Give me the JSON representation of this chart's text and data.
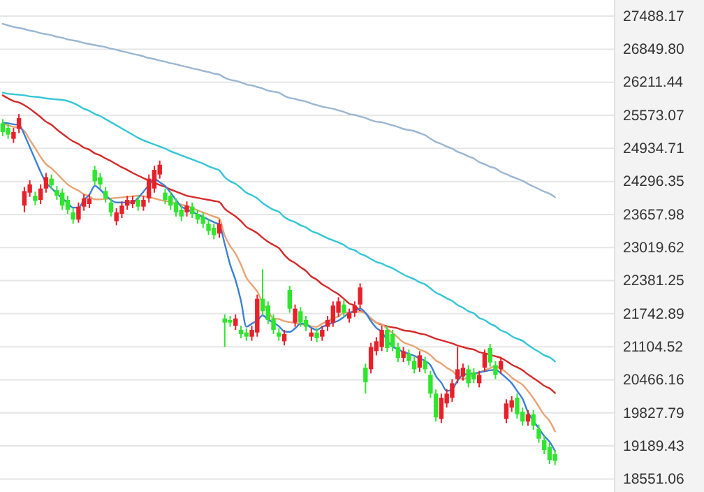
{
  "chart_data": {
    "type": "candlestick",
    "categories": [
      null,
      null,
      null,
      null,
      null,
      null,
      null,
      null,
      null,
      null,
      null,
      null,
      null,
      null,
      null,
      null,
      null,
      null,
      null,
      null,
      null,
      null,
      null,
      null,
      null,
      null,
      null,
      null,
      null,
      null,
      null,
      null,
      null,
      null,
      null,
      null,
      null,
      null,
      null,
      null,
      null,
      null,
      null,
      null,
      null,
      null,
      null,
      null,
      null,
      null,
      null,
      null,
      null,
      null,
      null,
      null,
      null,
      null,
      null,
      null,
      null,
      null,
      null,
      null,
      null,
      null,
      null,
      null,
      null,
      null,
      null,
      null,
      null,
      null,
      null,
      null,
      null,
      null,
      null,
      null,
      null,
      null,
      null,
      null,
      null,
      null,
      null,
      null,
      null,
      null,
      null,
      null,
      null,
      null,
      null,
      null,
      null,
      null,
      null,
      null,
      null,
      null,
      null
    ],
    "ohlc": [
      [
        25420,
        25500,
        25170,
        25250
      ],
      [
        25330,
        25410,
        25120,
        25200
      ],
      [
        25120,
        25330,
        25040,
        25250
      ],
      [
        25310,
        25600,
        25230,
        25520
      ],
      [
        23830,
        24190,
        23700,
        24110
      ],
      [
        24080,
        24320,
        24000,
        24240
      ],
      [
        24020,
        24100,
        23840,
        23920
      ],
      [
        23940,
        24240,
        23860,
        24160
      ],
      [
        24160,
        24460,
        24080,
        24380
      ],
      [
        24350,
        24430,
        24140,
        24220
      ],
      [
        24130,
        24210,
        23940,
        24020
      ],
      [
        24080,
        24160,
        23750,
        23830
      ],
      [
        23940,
        24020,
        23670,
        23750
      ],
      [
        23700,
        23780,
        23480,
        23560
      ],
      [
        23560,
        23890,
        23500,
        23810
      ],
      [
        23810,
        24050,
        23730,
        23970
      ],
      [
        23860,
        24050,
        23780,
        23970
      ],
      [
        24520,
        24600,
        24220,
        24300
      ],
      [
        24380,
        24460,
        24160,
        24240
      ],
      [
        24110,
        24190,
        23890,
        23970
      ],
      [
        23890,
        23970,
        23620,
        23700
      ],
      [
        23530,
        23780,
        23450,
        23700
      ],
      [
        23670,
        23910,
        23590,
        23830
      ],
      [
        23830,
        24020,
        23750,
        23940
      ],
      [
        23860,
        24020,
        23780,
        23940
      ],
      [
        23940,
        24020,
        23730,
        23810
      ],
      [
        23810,
        24020,
        23730,
        23940
      ],
      [
        23970,
        24430,
        23890,
        24350
      ],
      [
        24160,
        24600,
        24080,
        24520
      ],
      [
        24430,
        24700,
        24350,
        24620
      ],
      [
        24080,
        24160,
        23860,
        23940
      ],
      [
        24020,
        24100,
        23750,
        23830
      ],
      [
        23890,
        23970,
        23620,
        23700
      ],
      [
        23750,
        23830,
        23530,
        23620
      ],
      [
        23700,
        23910,
        23620,
        23830
      ],
      [
        23810,
        23890,
        23590,
        23670
      ],
      [
        23670,
        23750,
        23480,
        23560
      ],
      [
        23620,
        23700,
        23400,
        23480
      ],
      [
        23480,
        23560,
        23260,
        23340
      ],
      [
        23400,
        23480,
        23180,
        23260
      ],
      [
        23290,
        23560,
        23210,
        23480
      ],
      [
        21650,
        21730,
        21100,
        21570
      ],
      [
        21620,
        21700,
        21490,
        21570
      ],
      [
        21510,
        21730,
        21430,
        21650
      ],
      [
        21430,
        21510,
        21270,
        21350
      ],
      [
        21380,
        21460,
        21220,
        21300
      ],
      [
        21300,
        21510,
        21220,
        21430
      ],
      [
        21380,
        22110,
        21300,
        22030
      ],
      [
        22030,
        22600,
        21710,
        21790
      ],
      [
        21900,
        21980,
        21540,
        21620
      ],
      [
        21650,
        21730,
        21350,
        21430
      ],
      [
        21380,
        21460,
        21220,
        21300
      ],
      [
        21210,
        21430,
        21130,
        21350
      ],
      [
        22200,
        22280,
        21760,
        21840
      ],
      [
        21570,
        21920,
        21490,
        21840
      ],
      [
        21790,
        21870,
        21490,
        21570
      ],
      [
        21620,
        21700,
        21410,
        21490
      ],
      [
        21300,
        21460,
        21220,
        21380
      ],
      [
        21380,
        21460,
        21190,
        21270
      ],
      [
        21300,
        21510,
        21220,
        21430
      ],
      [
        21490,
        21700,
        21410,
        21620
      ],
      [
        21570,
        21980,
        21490,
        21900
      ],
      [
        21760,
        22060,
        21680,
        21980
      ],
      [
        21920,
        22000,
        21680,
        21760
      ],
      [
        21650,
        21840,
        21570,
        21760
      ],
      [
        21760,
        21980,
        21680,
        21900
      ],
      [
        21920,
        22330,
        21840,
        22250
      ],
      [
        20700,
        20780,
        20200,
        20420
      ],
      [
        20670,
        21180,
        20590,
        21100
      ],
      [
        21020,
        21290,
        20940,
        21210
      ],
      [
        21100,
        21510,
        21020,
        21430
      ],
      [
        21430,
        21510,
        21000,
        21080
      ],
      [
        21350,
        21430,
        21020,
        21100
      ],
      [
        21100,
        21180,
        20810,
        20890
      ],
      [
        20890,
        21100,
        20810,
        21020
      ],
      [
        20970,
        21050,
        20750,
        20830
      ],
      [
        20830,
        20910,
        20590,
        20670
      ],
      [
        20700,
        21020,
        20620,
        20940
      ],
      [
        20830,
        20910,
        20590,
        20670
      ],
      [
        20560,
        20640,
        20120,
        20200
      ],
      [
        20200,
        20280,
        19660,
        19740
      ],
      [
        19710,
        20200,
        19630,
        20120
      ],
      [
        20010,
        20290,
        19930,
        20200
      ],
      [
        20120,
        20480,
        20040,
        20400
      ],
      [
        20480,
        21100,
        20400,
        20670
      ],
      [
        20530,
        20780,
        20450,
        20700
      ],
      [
        20670,
        20750,
        20320,
        20400
      ],
      [
        20610,
        20690,
        20400,
        20480
      ],
      [
        20400,
        20640,
        20320,
        20560
      ],
      [
        20700,
        21050,
        20620,
        20970
      ],
      [
        21080,
        21160,
        20720,
        20800
      ],
      [
        20750,
        20830,
        20480,
        20560
      ],
      [
        20670,
        20910,
        20590,
        20830
      ],
      [
        19710,
        20090,
        19630,
        20010
      ],
      [
        19930,
        20150,
        19850,
        20070
      ],
      [
        20120,
        20200,
        19720,
        19800
      ],
      [
        19850,
        19930,
        19580,
        19660
      ],
      [
        19660,
        19880,
        19580,
        19800
      ],
      [
        19800,
        19880,
        19500,
        19580
      ],
      [
        19520,
        19600,
        19250,
        19330
      ],
      [
        19300,
        19380,
        19030,
        19110
      ],
      [
        19170,
        19250,
        18840,
        18920
      ],
      [
        19030,
        19110,
        18820,
        18900
      ]
    ],
    "colors": [
      "#2ee62e",
      "#2ee62e",
      "#e8202a",
      "#e8202a",
      "#e8202a",
      "#e8202a",
      "#2ee62e",
      "#e8202a",
      "#e8202a",
      "#2ee62e",
      "#2ee62e",
      "#2ee62e",
      "#2ee62e",
      "#2ee62e",
      "#e8202a",
      "#e8202a",
      "#e8202a",
      "#2ee62e",
      "#2ee62e",
      "#2ee62e",
      "#2ee62e",
      "#e8202a",
      "#e8202a",
      "#e8202a",
      "#e8202a",
      "#2ee62e",
      "#e8202a",
      "#e8202a",
      "#e8202a",
      "#e8202a",
      "#2ee62e",
      "#2ee62e",
      "#2ee62e",
      "#2ee62e",
      "#e8202a",
      "#2ee62e",
      "#2ee62e",
      "#2ee62e",
      "#2ee62e",
      "#2ee62e",
      "#e8202a",
      "#2ee62e",
      "#2ee62e",
      "#e8202a",
      "#2ee62e",
      "#2ee62e",
      "#e8202a",
      "#e8202a",
      "#2ee62e",
      "#2ee62e",
      "#2ee62e",
      "#2ee62e",
      "#e8202a",
      "#2ee62e",
      "#e8202a",
      "#2ee62e",
      "#2ee62e",
      "#e8202a",
      "#2ee62e",
      "#e8202a",
      "#e8202a",
      "#e8202a",
      "#e8202a",
      "#2ee62e",
      "#e8202a",
      "#e8202a",
      "#e8202a",
      "#2ee62e",
      "#e8202a",
      "#e8202a",
      "#e8202a",
      "#2ee62e",
      "#2ee62e",
      "#2ee62e",
      "#e8202a",
      "#2ee62e",
      "#2ee62e",
      "#e8202a",
      "#2ee62e",
      "#2ee62e",
      "#2ee62e",
      "#e8202a",
      "#e8202a",
      "#e8202a",
      "#e8202a",
      "#e8202a",
      "#2ee62e",
      "#2ee62e",
      "#e8202a",
      "#e8202a",
      "#2ee62e",
      "#2ee62e",
      "#e8202a",
      "#e8202a",
      "#e8202a",
      "#2ee62e",
      "#2ee62e",
      "#e8202a",
      "#2ee62e",
      "#2ee62e",
      "#2ee62e",
      "#2ee62e",
      "#2ee62e"
    ],
    "series": [
      {
        "type": "line",
        "color": "#9ab6d2",
        "values": [
          27340,
          27310,
          27280,
          27260,
          27240,
          27210,
          27190,
          27160,
          27140,
          27120,
          27090,
          27070,
          27040,
          27020,
          27000,
          26970,
          26950,
          26930,
          26910,
          26890,
          26860,
          26840,
          26810,
          26790,
          26760,
          26740,
          26710,
          26680,
          26660,
          26630,
          26610,
          26580,
          26560,
          26530,
          26510,
          26480,
          26460,
          26430,
          26410,
          26380,
          26360,
          26300,
          26260,
          26240,
          26210,
          26170,
          26150,
          26120,
          26090,
          26050,
          26030,
          26010,
          25950,
          25910,
          25890,
          25860,
          25840,
          25800,
          25770,
          25740,
          25720,
          25700,
          25670,
          25640,
          25600,
          25580,
          25550,
          25520,
          25480,
          25450,
          25440,
          25410,
          25380,
          25350,
          25310,
          25290,
          25270,
          25230,
          25190,
          25120,
          25060,
          25020,
          24970,
          24930,
          24870,
          24830,
          24780,
          24740,
          24670,
          24630,
          24580,
          24550,
          24480,
          24440,
          24390,
          24350,
          24310,
          24250,
          24200,
          24150,
          24100,
          24060,
          23990
        ]
      },
      {
        "type": "line",
        "color": "#33c6d8",
        "values": [
          26010,
          25990,
          25980,
          25970,
          25960,
          25940,
          25930,
          25920,
          25900,
          25890,
          25880,
          25870,
          25850,
          25810,
          25760,
          25700,
          25660,
          25600,
          25560,
          25500,
          25440,
          25380,
          25320,
          25260,
          25200,
          25140,
          25090,
          25050,
          25010,
          24970,
          24930,
          24880,
          24840,
          24800,
          24760,
          24720,
          24680,
          24640,
          24590,
          24550,
          24510,
          24380,
          24300,
          24250,
          24170,
          24080,
          24030,
          23970,
          23880,
          23810,
          23750,
          23710,
          23610,
          23550,
          23510,
          23450,
          23410,
          23340,
          23300,
          23250,
          23200,
          23160,
          23120,
          23070,
          23000,
          22970,
          22900,
          22860,
          22800,
          22740,
          22710,
          22660,
          22620,
          22560,
          22500,
          22450,
          22410,
          22350,
          22310,
          22230,
          22150,
          22100,
          22040,
          21990,
          21910,
          21860,
          21790,
          21750,
          21660,
          21620,
          21550,
          21500,
          21420,
          21380,
          21310,
          21260,
          21220,
          21140,
          21070,
          21010,
          20940,
          20900,
          20820
        ]
      },
      {
        "type": "line",
        "color": "#d62a2a",
        "values": [
          25960,
          25900,
          25850,
          25820,
          25770,
          25700,
          25620,
          25540,
          25450,
          25390,
          25300,
          25220,
          25140,
          25070,
          25020,
          24950,
          24910,
          24840,
          24800,
          24740,
          24690,
          24630,
          24570,
          24520,
          24460,
          24410,
          24360,
          24310,
          24270,
          24230,
          24190,
          24140,
          24100,
          24060,
          24020,
          24000,
          23980,
          23960,
          23940,
          23920,
          23900,
          23770,
          23690,
          23620,
          23530,
          23420,
          23360,
          23300,
          23210,
          23130,
          23070,
          23010,
          22880,
          22780,
          22720,
          22640,
          22570,
          22460,
          22400,
          22310,
          22250,
          22180,
          22120,
          22030,
          21940,
          21900,
          21800,
          21750,
          21650,
          21570,
          21530,
          21500,
          21480,
          21460,
          21420,
          21410,
          21390,
          21360,
          21340,
          21300,
          21260,
          21230,
          21200,
          21170,
          21130,
          21100,
          21070,
          21050,
          21000,
          20980,
          20950,
          20920,
          20890,
          20830,
          20760,
          20710,
          20650,
          20570,
          20500,
          20430,
          20350,
          20300,
          20210
        ]
      },
      {
        "type": "line",
        "color": "#e9a374",
        "values": [
          25420,
          25380,
          25350,
          25330,
          25270,
          25100,
          24940,
          24770,
          24630,
          24550,
          24450,
          24340,
          24240,
          24170,
          24120,
          24050,
          24010,
          23950,
          23950,
          23960,
          23970,
          23980,
          23990,
          24000,
          24010,
          24020,
          24010,
          23990,
          23970,
          23940,
          23920,
          23900,
          23870,
          23850,
          23820,
          23780,
          23740,
          23700,
          23660,
          23620,
          23580,
          23250,
          23050,
          22900,
          22690,
          22440,
          22300,
          22170,
          21950,
          21800,
          21650,
          21640,
          21600,
          21580,
          21560,
          21540,
          21530,
          21500,
          21490,
          21550,
          21600,
          21650,
          21690,
          21760,
          21770,
          21770,
          21780,
          21750,
          21650,
          21570,
          21540,
          21450,
          21370,
          21280,
          21190,
          21150,
          21110,
          21050,
          21010,
          20940,
          20840,
          20780,
          20700,
          20640,
          20540,
          20480,
          20520,
          20560,
          20610,
          20650,
          20690,
          20730,
          20680,
          20610,
          20510,
          20440,
          20370,
          20250,
          20110,
          19950,
          19790,
          19670,
          19470
        ]
      },
      {
        "type": "line",
        "color": "#3a80d6",
        "values": [
          25430,
          25420,
          25400,
          25390,
          25200,
          24960,
          24720,
          24480,
          24270,
          24170,
          24060,
          23970,
          23880,
          23790,
          23790,
          23940,
          24040,
          24210,
          24140,
          24030,
          23940,
          23890,
          23890,
          23890,
          23890,
          23980,
          24100,
          24230,
          24350,
          24280,
          24210,
          24080,
          23940,
          23810,
          23760,
          23710,
          23660,
          23610,
          23560,
          23510,
          23460,
          23090,
          22690,
          22390,
          21990,
          21490,
          21550,
          21610,
          21710,
          21630,
          21570,
          21500,
          21400,
          21390,
          21460,
          21550,
          21540,
          21470,
          21430,
          21490,
          21530,
          21570,
          21610,
          21680,
          21760,
          21790,
          21840,
          21760,
          21600,
          21470,
          21390,
          21230,
          21110,
          21060,
          21000,
          20970,
          20930,
          20880,
          20830,
          20750,
          20540,
          20410,
          20250,
          20280,
          20450,
          20560,
          20580,
          20590,
          20610,
          20630,
          20650,
          20660,
          20590,
          20500,
          20400,
          20250,
          20100,
          19840,
          19670,
          19530,
          19380,
          19270,
          19090
        ]
      }
    ],
    "ylim": [
      18300,
      27800
    ],
    "yticks": [
      27488.17,
      {
        "value": 26849.8,
        "label": "26849.80"
      },
      26211.44,
      25573.07,
      24934.71,
      24296.35,
      23657.98,
      23019.62,
      22381.25,
      21742.89,
      21104.52,
      20466.16,
      19827.79,
      19189.43,
      18551.06
    ],
    "grid": "y",
    "tick_labels": "y"
  }
}
